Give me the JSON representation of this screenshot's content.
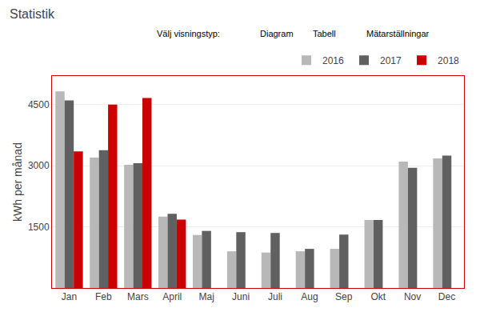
{
  "chart_data": {
    "type": "bar",
    "title": "Statistik",
    "ylabel": "kWh per månad",
    "annotations": [
      "Välj visningstyp:",
      "Diagram",
      "Tabell",
      "Mätarställningar"
    ],
    "categories": [
      "Jan",
      "Feb",
      "Mars",
      "April",
      "Maj",
      "Juni",
      "Juli",
      "Aug",
      "Sep",
      "Okt",
      "Nov",
      "Dec"
    ],
    "series": [
      {
        "name": "2016",
        "color": "#b8b8b8",
        "values": [
          4820,
          3200,
          3020,
          1750,
          1300,
          900,
          870,
          900,
          960,
          1670,
          3100,
          3180
        ]
      },
      {
        "name": "2017",
        "color": "#606060",
        "values": [
          4600,
          3380,
          3060,
          1820,
          1400,
          1370,
          1350,
          960,
          1310,
          1670,
          2950,
          3250
        ]
      },
      {
        "name": "2018",
        "color": "#cc0000",
        "values": [
          3350,
          4500,
          4660,
          1680,
          null,
          null,
          null,
          null,
          null,
          null,
          null,
          null
        ]
      }
    ],
    "ylim": [
      0,
      5200
    ],
    "yticks": [
      1500,
      3000,
      4500
    ],
    "grid": true,
    "legend": "upper right"
  }
}
